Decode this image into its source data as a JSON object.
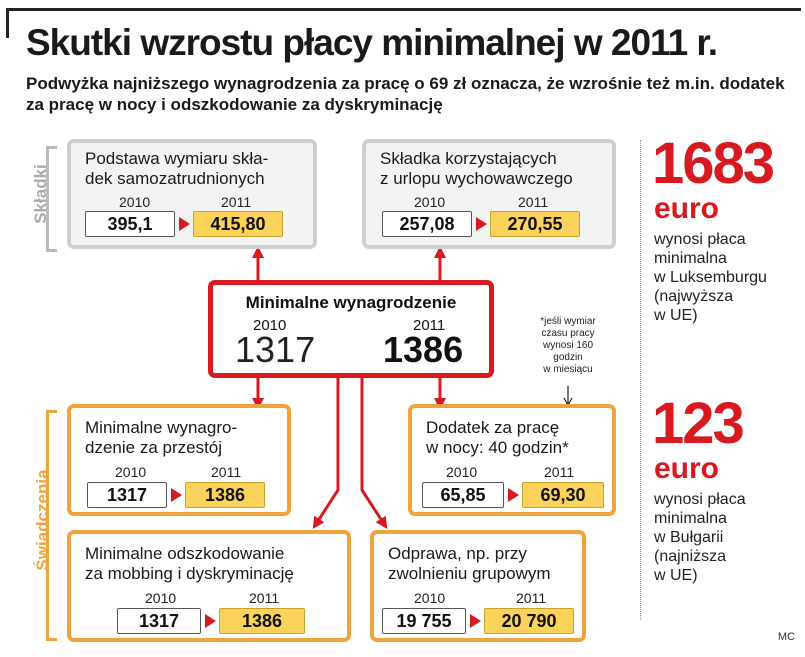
{
  "header": {
    "title": "Skutki wzrostu płacy minimalnej w 2011 r.",
    "subtitle": "Podwyżka najniższego wynagrodzenia za pracę o 69 zł oznacza, że wzrośnie też m.in. dodatek za pracę w nocy i odszkodowanie za dyskryminację"
  },
  "groups": {
    "skladki": "Składki",
    "swiadczenia": "Świadczenia"
  },
  "boxes": {
    "podstawa": {
      "title": "Podstawa wymiaru skła-\ndek samozatrudnionych",
      "year_old": "2010",
      "year_new": "2011",
      "old": "395,1",
      "new": "415,80"
    },
    "skladka": {
      "title": "Składka korzystających\nz urlopu wychowawczego",
      "year_old": "2010",
      "year_new": "2011",
      "old": "257,08",
      "new": "270,55"
    },
    "przestoj": {
      "title": "Minimalne wynagro-\ndzenie za przestój",
      "year_old": "2010",
      "year_new": "2011",
      "old": "1317",
      "new": "1386"
    },
    "dodatek": {
      "title": "Dodatek za pracę\nw nocy: 40 godzin*",
      "year_old": "2010",
      "year_new": "2011",
      "old": "65,85",
      "new": "69,30"
    },
    "mobbing": {
      "title": "Minimalne odszkodowanie\nza mobbing i dyskryminację",
      "year_old": "2010",
      "year_new": "2011",
      "old": "1317",
      "new": "1386"
    },
    "odprawa": {
      "title": "Odprawa, np. przy\nzwolnieniu grupowym",
      "year_old": "2010",
      "year_new": "2011",
      "old": "19 755",
      "new": "20 790"
    }
  },
  "center": {
    "title": "Minimalne wynagrodzenie",
    "year_old": "2010",
    "year_new": "2011",
    "old": "1317",
    "new": "1386"
  },
  "footnote": "*jeśli wymiar\nczasu pracy\nwynosi 160\ngodzin\nw miesiącu",
  "sidebar": {
    "lux": {
      "number": "1683",
      "unit": "euro",
      "text": "wynosi płaca\nminimalna\nw Luksemburgu\n(najwyższa\nw UE)"
    },
    "bg": {
      "number": "123",
      "unit": "euro",
      "text": "wynosi płaca\nminimalna\nw Bułgarii\n(najniższa\nw UE)"
    }
  },
  "credit": "MC",
  "colors": {
    "red": "#d71920",
    "orange": "#f2a23a",
    "gray": "#cfcfcf",
    "yellow": "#fbd35a"
  }
}
